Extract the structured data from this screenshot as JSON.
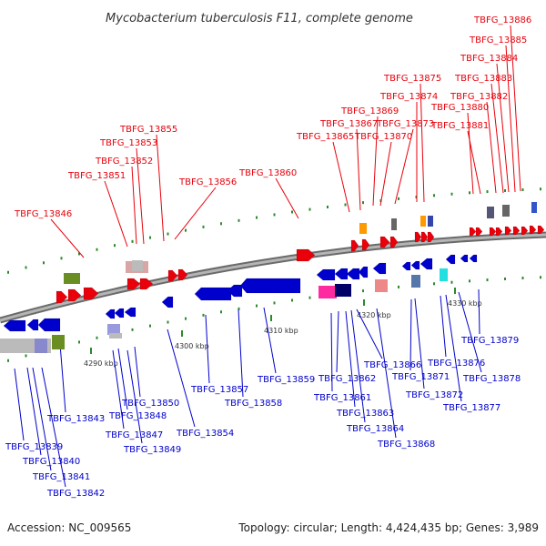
{
  "title": "Mycobacterium tuberculosis F11, complete genome",
  "footer": {
    "accession": "Accession: NC_009565",
    "summary": "Topology: circular; Length: 4,424,435 bp; Genes: 3,989"
  },
  "colors": {
    "forward": "#e8000b",
    "reverse": "#0000cc",
    "backbone": "#888888",
    "tick": "#2a8a2a"
  },
  "scale_ticks": [
    "4290 kbp",
    "4300 kbp",
    "4310 kbp",
    "4320 kbp",
    "4330 kbp"
  ],
  "forward_labels": [
    "TBFG_13846",
    "TBFG_13851",
    "TBFG_13852",
    "TBFG_13853",
    "TBFG_13855",
    "TBFG_13856",
    "TBFG_13860",
    "TBFG_13865",
    "TBFG_13867",
    "TBFG_13869",
    "TBFG_13870",
    "TBFG_13873",
    "TBFG_13874",
    "TBFG_13875",
    "TBFG_13880",
    "TBFG_13881",
    "TBFG_13882",
    "TBFG_13883",
    "TBFG_13884",
    "TBFG_13885",
    "TBFG_13886"
  ],
  "reverse_labels": [
    "TBFG_13839",
    "TBFG_13840",
    "TBFG_13841",
    "TBFG_13842",
    "TBFG_13843",
    "TBFG_13847",
    "TBFG_13848",
    "TBFG_13849",
    "TBFG_13850",
    "TBFG_13854",
    "TBFG_13857",
    "TBFG_13858",
    "TBFG_13859",
    "TBFG_13861",
    "TBFG_13862",
    "TBFG_13863",
    "TBFG_13864",
    "TBFG_13866",
    "TBFG_13868",
    "TBFG_13871",
    "TBFG_13872",
    "TBFG_13876",
    "TBFG_13877",
    "TBFG_13878",
    "TBFG_13879"
  ]
}
